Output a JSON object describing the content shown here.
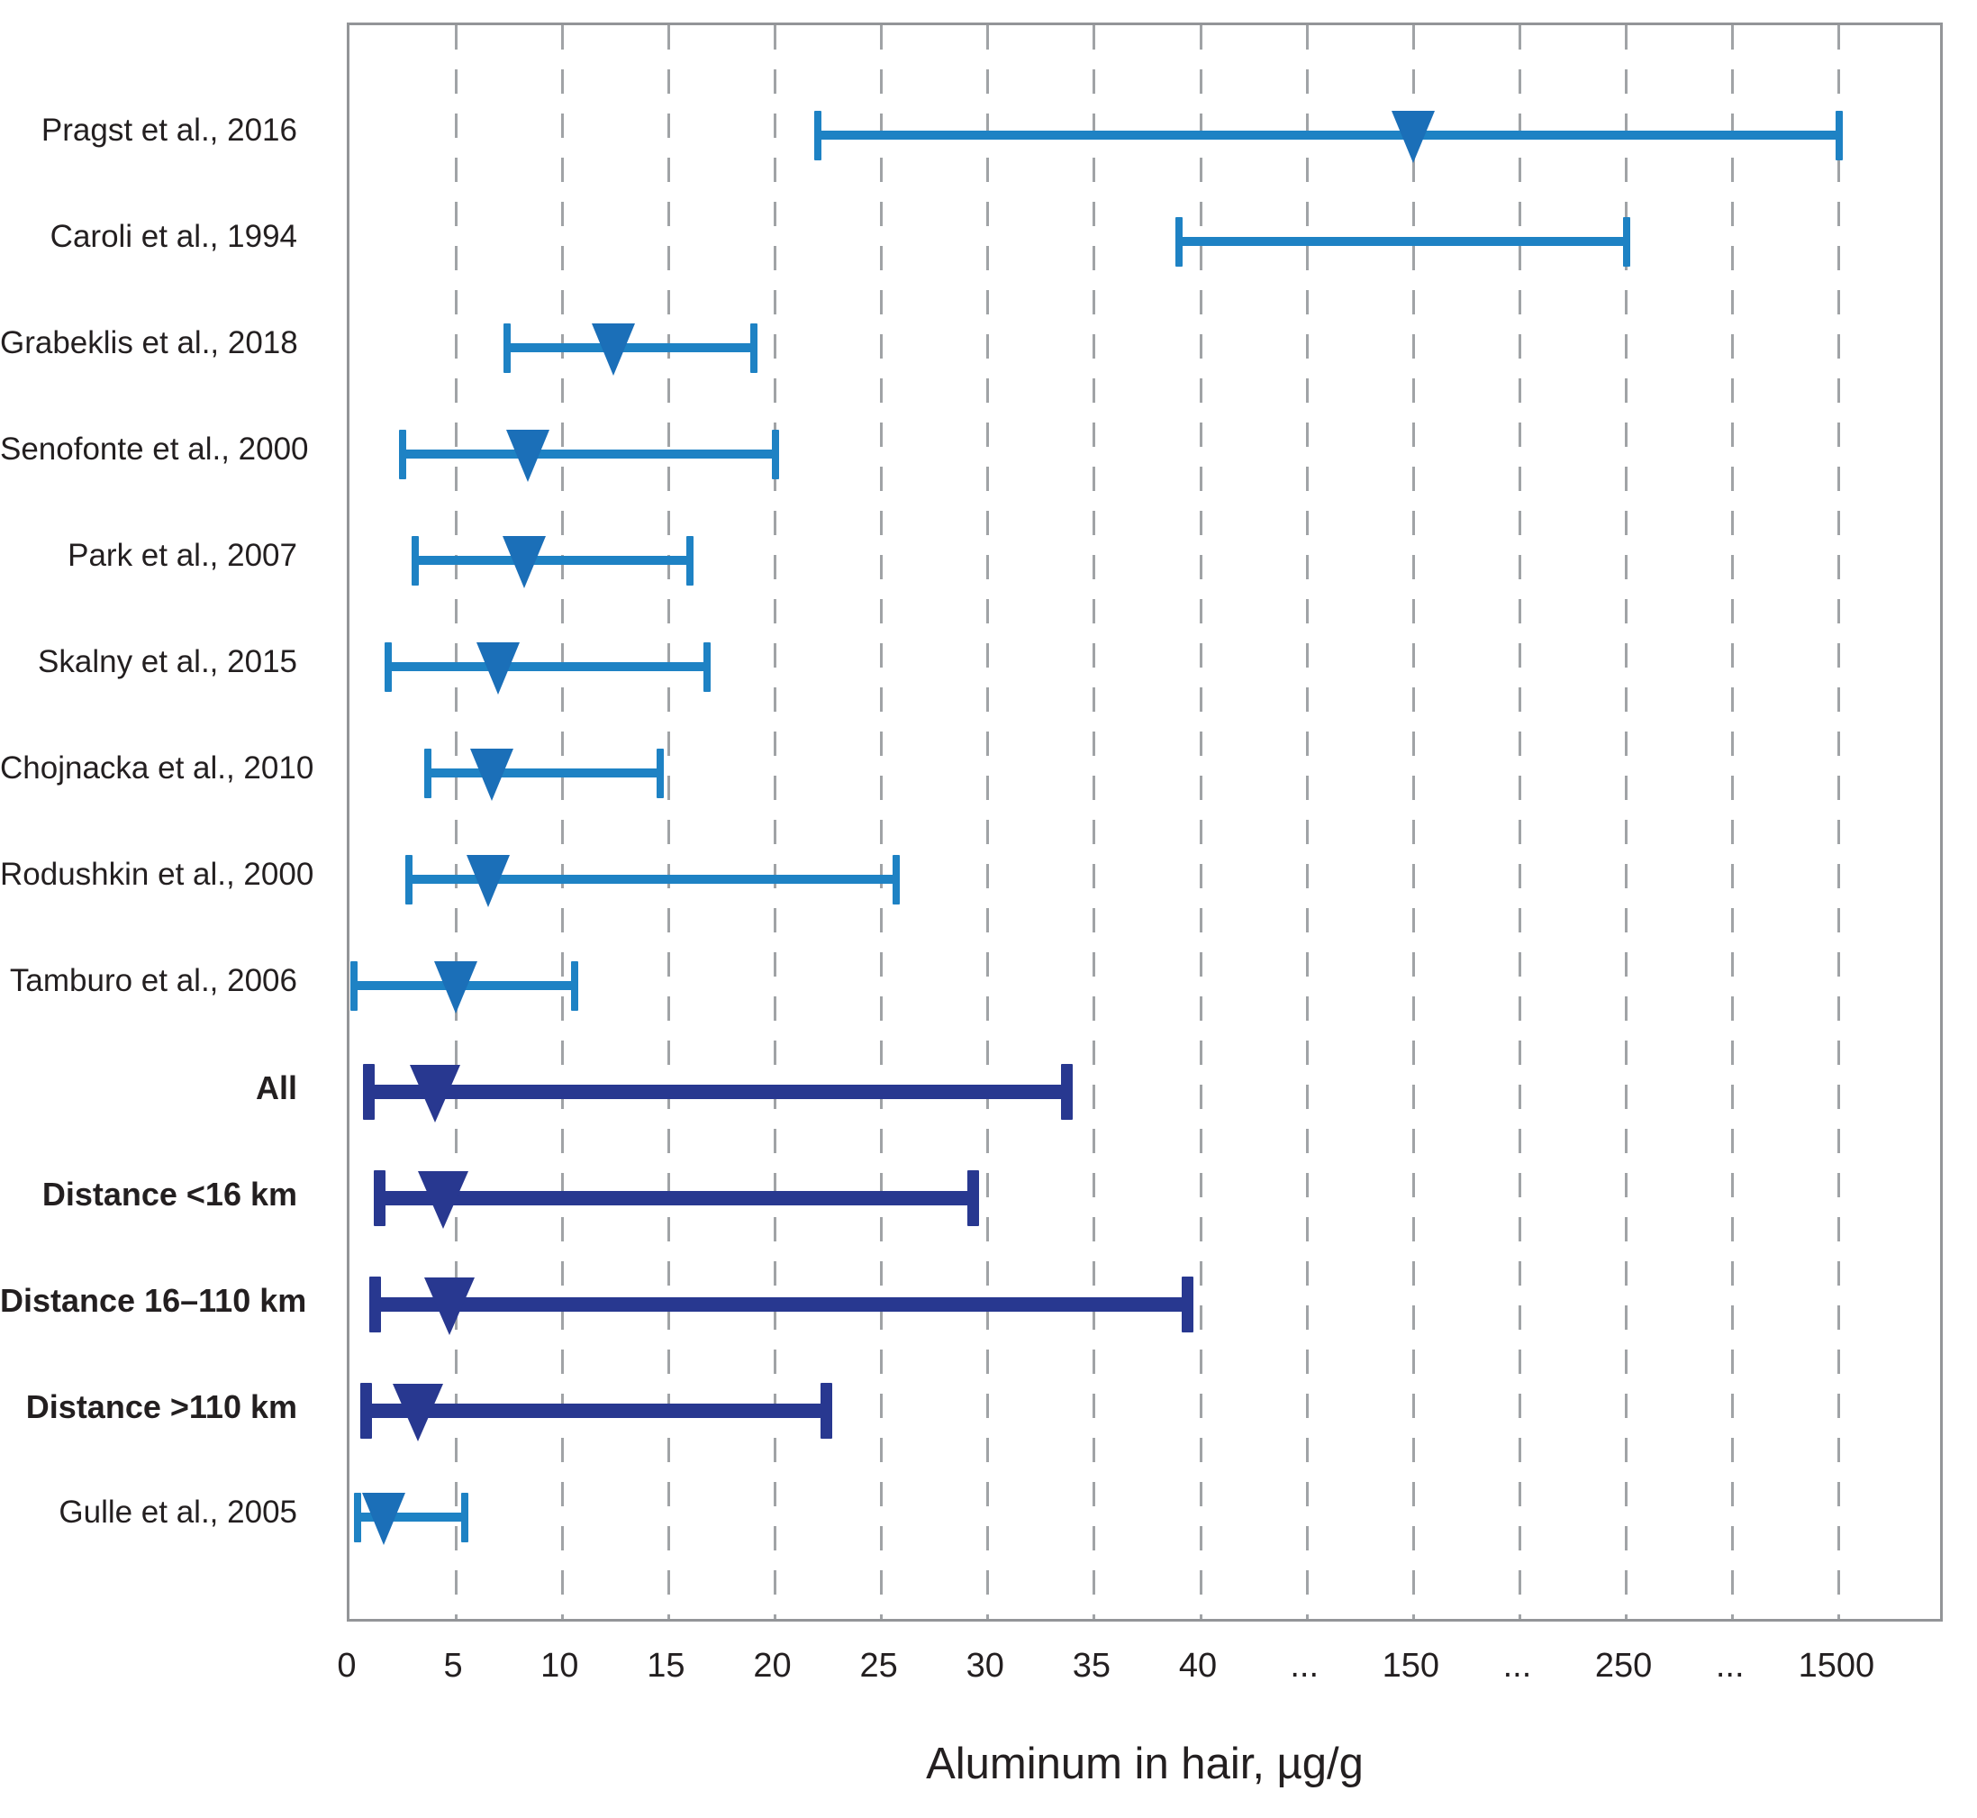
{
  "chart_data": {
    "type": "scatter",
    "subtype": "horizontal-error-bar-forest-plot",
    "title": "",
    "xlabel": "Aluminum in hair, µg/g",
    "x_axis": {
      "scale": "piecewise: linear 0-40 (tick every 5), then equal-width compressed segments to 150, 250, 1500",
      "tick_labels": [
        "0",
        "5",
        "10",
        "15",
        "20",
        "25",
        "30",
        "35",
        "40",
        "...",
        "150",
        "...",
        "250",
        "...",
        "1500"
      ],
      "tick_numeric_values": [
        0,
        5,
        10,
        15,
        20,
        25,
        30,
        35,
        40,
        null,
        150,
        null,
        250,
        null,
        1500
      ],
      "grid": "vertical dashed gray lines at every tick except 0"
    },
    "legend_position": "none",
    "colors": {
      "study_bar": "#1e82c4",
      "study_marker": "#1b6fb8",
      "summary_bar": "#283890",
      "grid": "#a0a3a6",
      "border": "#939598",
      "text": "#231f20"
    },
    "rows": [
      {
        "label": "Pragst et al., 2016",
        "style": "study",
        "min": 22,
        "marker": 150,
        "max": 1500
      },
      {
        "label": "Caroli et al., 1994",
        "style": "study",
        "min": 39,
        "marker": null,
        "max": 250
      },
      {
        "label": "Grabeklis et al., 2018",
        "style": "study",
        "min": 7.4,
        "marker": 12.4,
        "max": 19
      },
      {
        "label": "Senofonte et al., 2000",
        "style": "study",
        "min": 2.5,
        "marker": 8.4,
        "max": 20
      },
      {
        "label": "Park et al., 2007",
        "style": "study",
        "min": 3.1,
        "marker": 8.2,
        "max": 16
      },
      {
        "label": "Skalny et al., 2015",
        "style": "study",
        "min": 1.8,
        "marker": 7.0,
        "max": 16.8
      },
      {
        "label": "Chojnacka et al., 2010",
        "style": "study",
        "min": 3.7,
        "marker": 6.7,
        "max": 14.6
      },
      {
        "label": "Rodushkin et al., 2000",
        "style": "study",
        "min": 2.8,
        "marker": 6.5,
        "max": 25.7
      },
      {
        "label": "Tamburo et al., 2006",
        "style": "study",
        "min": 0.2,
        "marker": 5.0,
        "max": 10.6
      },
      {
        "label": "All",
        "style": "summary",
        "min": 0.9,
        "marker": 4.0,
        "max": 33.7
      },
      {
        "label": "Distance <16 km",
        "style": "summary",
        "min": 1.4,
        "marker": 4.4,
        "max": 29.3
      },
      {
        "label": "Distance 16–110 km",
        "style": "summary",
        "min": 1.2,
        "marker": 4.7,
        "max": 39.4
      },
      {
        "label": "Distance >110 km",
        "style": "summary",
        "min": 0.8,
        "marker": 3.2,
        "max": 22.4
      },
      {
        "label": "Gulle et al., 2005",
        "style": "study",
        "min": 0.4,
        "marker": 1.6,
        "max": 5.4
      }
    ]
  },
  "layout_note_values_visible_only": true
}
